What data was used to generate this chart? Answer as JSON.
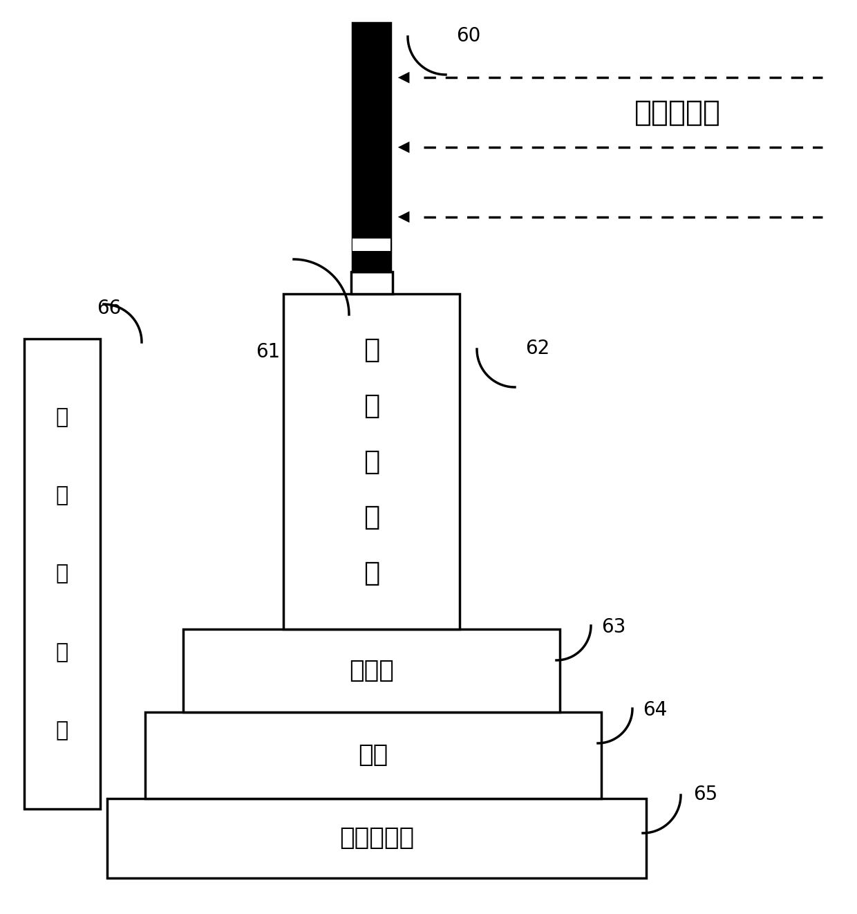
{
  "bg_color": "#ffffff",
  "line_color": "#000000",
  "label_60": "60",
  "label_61": "61",
  "label_62": "62",
  "label_63": "63",
  "label_64": "64",
  "label_65": "65",
  "label_66": "66",
  "text_beam": "平面波光束",
  "text_sample_rack_chars": [
    "样",
    "品",
    "放",
    "置",
    "架"
  ],
  "text_tilt": "俦仰台",
  "text_turntable": "转台",
  "text_horizontal": "水平平移台",
  "text_vertical_chars": [
    "垂",
    "直",
    "平",
    "移",
    "台"
  ],
  "figsize": [
    12.4,
    13.22
  ],
  "dpi": 100
}
